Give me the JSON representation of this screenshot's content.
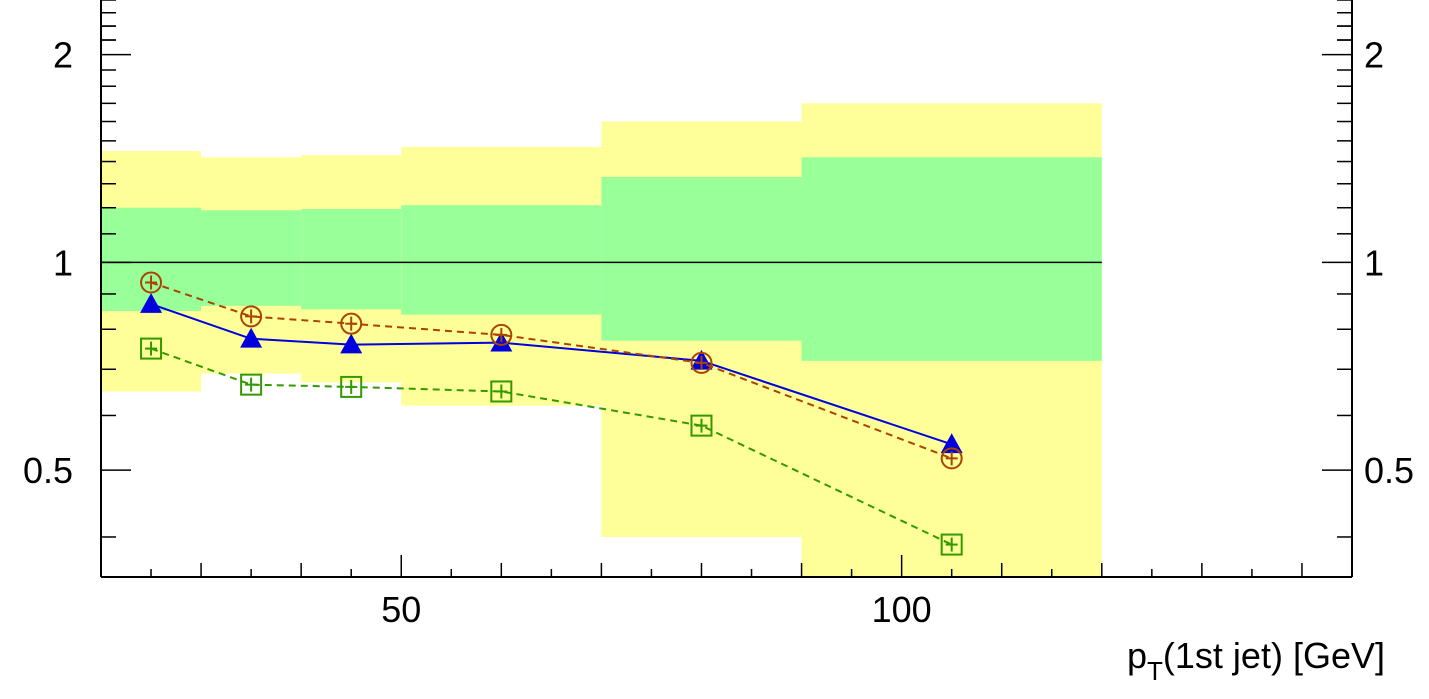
{
  "chart_data": {
    "type": "line",
    "xlabel_main": "p",
    "xlabel_sub": "T",
    "xlabel_rest": "(1st jet) [GeV]",
    "x_scale": "linear",
    "xlim": [
      20,
      145
    ],
    "ylim": [
      0.35,
      2.4
    ],
    "y_scale": "log",
    "x_ticks": [
      {
        "value": 50,
        "label": "50"
      },
      {
        "value": 100,
        "label": "100"
      }
    ],
    "y_ticks_left": [
      {
        "value": 0.5,
        "label": "0.5"
      },
      {
        "value": 1,
        "label": "1"
      },
      {
        "value": 2,
        "label": "2"
      }
    ],
    "y_ticks_right": [
      {
        "value": 0.5,
        "label": "0.5"
      },
      {
        "value": 1,
        "label": "1"
      },
      {
        "value": 2,
        "label": "2"
      }
    ],
    "reference_line": 1,
    "bands": [
      {
        "x0": 20,
        "x1": 30,
        "yellow": [
          0.65,
          1.45
        ],
        "green": [
          0.85,
          1.2
        ]
      },
      {
        "x0": 30,
        "x1": 40,
        "yellow": [
          0.69,
          1.42
        ],
        "green": [
          0.865,
          1.19
        ]
      },
      {
        "x0": 40,
        "x1": 50,
        "yellow": [
          0.67,
          1.43
        ],
        "green": [
          0.855,
          1.195
        ]
      },
      {
        "x0": 50,
        "x1": 70,
        "yellow": [
          0.62,
          1.47
        ],
        "green": [
          0.84,
          1.21
        ]
      },
      {
        "x0": 70,
        "x1": 90,
        "yellow": [
          0.4,
          1.6
        ],
        "green": [
          0.77,
          1.33
        ]
      },
      {
        "x0": 90,
        "x1": 120,
        "yellow": [
          0.35,
          1.7
        ],
        "green": [
          0.72,
          1.42
        ]
      }
    ],
    "band_colors": {
      "yellow": "#ffff99",
      "green": "#99ff99"
    },
    "series": [
      {
        "marker": "triangle",
        "color": "#0000dd",
        "line": "solid",
        "x": [
          25,
          35,
          45,
          60,
          80,
          105
        ],
        "y": [
          0.87,
          0.775,
          0.76,
          0.765,
          0.72,
          0.545
        ]
      },
      {
        "marker": "open-circle-cross",
        "color": "#aa4400",
        "line": "dashed",
        "x": [
          25,
          35,
          45,
          60,
          80,
          105
        ],
        "y": [
          0.935,
          0.835,
          0.815,
          0.785,
          0.715,
          0.52
        ]
      },
      {
        "marker": "open-square-cross",
        "color": "#339900",
        "line": "dashed",
        "x": [
          25,
          35,
          45,
          60,
          80,
          105
        ],
        "y": [
          0.75,
          0.665,
          0.66,
          0.65,
          0.58,
          0.39
        ]
      }
    ]
  }
}
